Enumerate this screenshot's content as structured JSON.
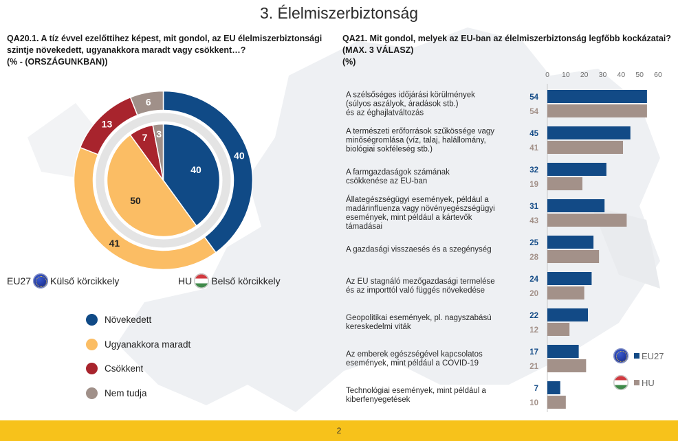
{
  "page": {
    "title": "3. Élelmiszerbiztonság",
    "page_number": "2"
  },
  "colors": {
    "eu27": "#124a86",
    "hu": "#a39189",
    "increased": "#104a86",
    "same": "#fbbd64",
    "decreased": "#a8242d",
    "dont_know": "#a09089",
    "footer": "#f7c21b"
  },
  "left": {
    "question_lines": [
      "QA20.1. A tíz évvel ezelőttihez képest, mit gondol, az EU élelmiszerbiztonsági",
      "szintje növekedett, ugyanakkora maradt vagy csökkent…?",
      "(% - (ORSZÁGUNKBAN))"
    ],
    "ring_legend": {
      "outer_code": "EU27",
      "outer_label": "Külső körcikkely",
      "inner_code": "HU",
      "inner_label": "Belső körcikkely"
    },
    "categories": [
      "Növekedett",
      "Ugyanakkora maradt",
      "Csökkent",
      "Nem tudja"
    ]
  },
  "right": {
    "question_lines": [
      "QA21. Mit gondol, melyek az EU-ban az élelmiszerbiztonság legfőbb kockázatai?",
      "(MAX. 3 VÁLASZ)",
      "(%)"
    ],
    "series_legend": {
      "eu27": "EU27",
      "hu": "HU"
    }
  },
  "chart_data": [
    {
      "type": "pie",
      "subtype": "double-donut",
      "categories": [
        "Növekedett",
        "Ugyanakkora maradt",
        "Csökkent",
        "Nem tudja"
      ],
      "series": [
        {
          "name": "EU27",
          "ring": "outer",
          "values": [
            40,
            41,
            13,
            6
          ]
        },
        {
          "name": "HU",
          "ring": "inner",
          "values": [
            40,
            50,
            7,
            3
          ]
        }
      ]
    },
    {
      "type": "bar",
      "orientation": "horizontal",
      "xlim": [
        0,
        60
      ],
      "ticks": [
        0,
        10,
        20,
        30,
        40,
        50,
        60
      ],
      "tick_position": "top",
      "legend": "bottom-right",
      "categories": [
        [
          "A szélsőséges időjárási körülmények",
          "(súlyos aszályok, áradások stb.)",
          "és az éghajlatváltozás"
        ],
        [
          "A természeti erőforrások szűkössége vagy",
          "minőségromlása (víz, talaj, halállomány,",
          "biológiai sokféleség stb.)"
        ],
        [
          "A farmgazdaságok számának",
          "csökkenése az EU-ban"
        ],
        [
          "Állategészségügyi események, például a",
          "madárinfluenza vagy növényegészségügyi",
          "események, mint például a kártevők",
          "támadásai"
        ],
        [
          "A gazdasági visszaesés és a szegénység"
        ],
        [
          "Az EU stagnáló mezőgazdasági termelése",
          "és az importtól való függés növekedése"
        ],
        [
          "Geopolitikai események, pl. nagyszabású",
          "kereskedelmi viták"
        ],
        [
          "Az emberek egészségével kapcsolatos",
          "események, mint például a COVID-19"
        ],
        [
          "Technológiai események, mint például a",
          "kiberfenyegetések"
        ]
      ],
      "series": [
        {
          "name": "EU27",
          "values": [
            54,
            45,
            32,
            31,
            25,
            24,
            22,
            17,
            7
          ]
        },
        {
          "name": "HU",
          "values": [
            54,
            41,
            19,
            43,
            28,
            20,
            12,
            21,
            10
          ]
        }
      ]
    }
  ]
}
